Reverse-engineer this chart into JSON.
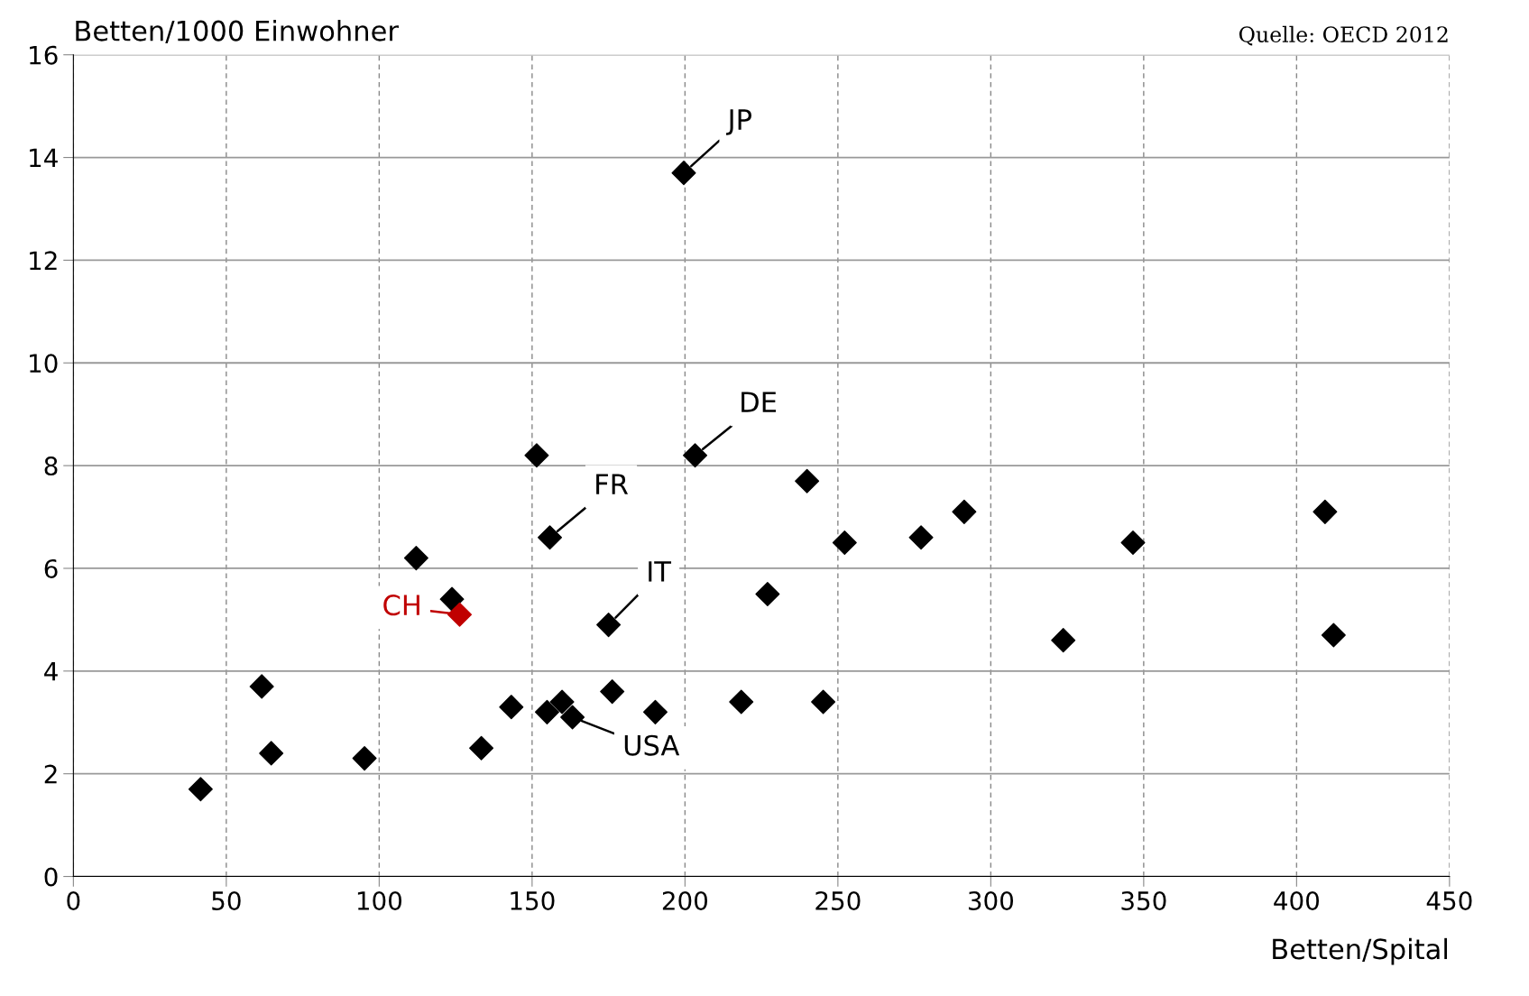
{
  "chart_data": {
    "type": "scatter",
    "ylabel": "Betten/1000 Einwohner",
    "xlabel": "Betten/Spital",
    "x": [
      41.6,
      61.6,
      64.7,
      95.2,
      112.1,
      123.8,
      126.3,
      133.4,
      143.2,
      151.5,
      154.9,
      155.8,
      159.8,
      163.2,
      175,
      176.2,
      190.3,
      199.6,
      203.3,
      218.4,
      227,
      239.9,
      245.2,
      252.2,
      277.2,
      291.3,
      323.7,
      346.5,
      409.3,
      412.1
    ],
    "series": [
      {
        "values": [
          1.7,
          3.7,
          2.4,
          2.3,
          6.2,
          5.4,
          5.1,
          2.5,
          3.3,
          8.2,
          3.2,
          6.6,
          3.4,
          3.1,
          4.9,
          3.6,
          3.2,
          13.7,
          8.2,
          3.4,
          5.5,
          7.7,
          3.4,
          6.5,
          6.6,
          7.1,
          4.6,
          6.5,
          7.1,
          4.7
        ],
        "colors": [
          "#000000",
          "#000000",
          "#000000",
          "#000000",
          "#000000",
          "#000000",
          "#c00000",
          "#000000",
          "#000000",
          "#000000",
          "#000000",
          "#000000",
          "#000000",
          "#000000",
          "#000000",
          "#000000",
          "#000000",
          "#000000",
          "#000000",
          "#000000",
          "#000000",
          "#000000",
          "#000000",
          "#000000",
          "#000000",
          "#000000",
          "#000000",
          "#000000",
          "#000000",
          "#000000"
        ]
      }
    ],
    "marker": "diamond",
    "xlim": [
      0,
      450
    ],
    "ylim": [
      0,
      16
    ],
    "xticks": [
      0,
      50,
      100,
      150,
      200,
      250,
      300,
      350,
      400,
      450
    ],
    "yticks": [
      0,
      2,
      4,
      6,
      8,
      10,
      12,
      14,
      16
    ],
    "grid": true,
    "legend": false,
    "annotations": [
      {
        "text": "JP",
        "x": 199.6,
        "y": 13.7
      },
      {
        "text": "DE",
        "x": 203.3,
        "y": 8.2
      },
      {
        "text": "FR",
        "x": 155.8,
        "y": 6.6
      },
      {
        "text": "IT",
        "x": 175,
        "y": 4.9
      },
      {
        "text": "CH",
        "x": 126.3,
        "y": 5.1
      },
      {
        "text": "USA",
        "x": 163.2,
        "y": 3.1
      },
      "Quelle: OECD 2012"
    ]
  }
}
